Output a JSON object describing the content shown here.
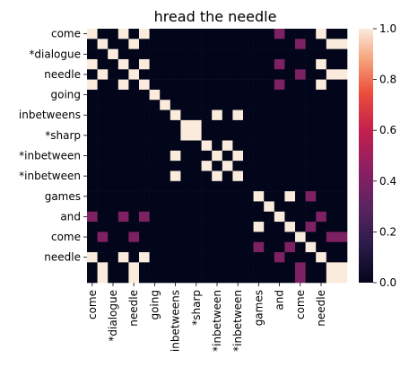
{
  "chart_data": {
    "type": "heatmap",
    "title": "hread the needle",
    "row_labels": [
      "come",
      "*dialogue",
      "needle",
      "going",
      "inbetweens",
      "*sharp",
      "*inbetween",
      "*inbetween",
      "games",
      "and",
      "come",
      "needle"
    ],
    "col_labels": [
      "come",
      "*dialogue",
      "needle",
      "going",
      "inbetweens",
      "*sharp",
      "*inbetween",
      "*inbetween",
      "games",
      "and",
      "come",
      "needle"
    ],
    "visible_row_ticks": [
      0,
      2,
      4,
      6,
      8,
      10,
      12,
      14,
      16,
      18,
      20,
      22
    ],
    "visible_col_ticks": [
      0,
      2,
      4,
      6,
      8,
      10,
      12,
      14,
      16,
      18,
      20,
      22
    ],
    "colorbar": {
      "min": 0.0,
      "max": 1.0,
      "ticks": [
        "0.0",
        "0.2",
        "0.4",
        "0.6",
        "0.8",
        "1.0"
      ]
    },
    "matrix": [
      [
        1,
        0,
        0,
        1,
        0,
        1,
        0,
        0,
        0,
        0,
        0,
        0,
        0,
        0,
        0,
        0,
        0,
        0,
        0.4,
        0,
        0,
        0,
        1,
        0,
        0
      ],
      [
        0,
        1,
        0,
        0,
        1,
        0,
        0,
        0,
        0,
        0,
        0,
        0,
        0,
        0,
        0,
        0,
        0,
        0,
        0,
        0,
        0.4,
        0,
        0,
        1,
        1
      ],
      [
        0,
        0,
        1,
        0,
        0,
        0,
        0,
        0,
        0,
        0,
        0,
        0,
        0,
        0,
        0,
        0,
        0,
        0,
        0,
        0,
        0,
        0,
        0,
        0,
        0
      ],
      [
        1,
        0,
        0,
        1,
        0,
        1,
        0,
        0,
        0,
        0,
        0,
        0,
        0,
        0,
        0,
        0,
        0,
        0,
        0.4,
        0,
        0,
        0,
        1,
        0,
        0
      ],
      [
        0,
        1,
        0,
        0,
        1,
        0,
        0,
        0,
        0,
        0,
        0,
        0,
        0,
        0,
        0,
        0,
        0,
        0,
        0,
        0,
        0.4,
        0,
        0,
        1,
        1
      ],
      [
        1,
        0,
        0,
        1,
        0,
        1,
        0,
        0,
        0,
        0,
        0,
        0,
        0,
        0,
        0,
        0,
        0,
        0,
        0.4,
        0,
        0,
        0,
        1,
        0,
        0
      ],
      [
        0,
        0,
        0,
        0,
        0,
        0,
        1,
        0,
        0,
        0,
        0,
        0,
        0,
        0,
        0,
        0,
        0,
        0,
        0,
        0,
        0,
        0,
        0,
        0,
        0
      ],
      [
        0,
        0,
        0,
        0,
        0,
        0,
        0,
        1,
        0,
        0,
        0,
        0,
        0,
        0,
        0,
        0,
        0,
        0,
        0,
        0,
        0,
        0,
        0,
        0,
        0
      ],
      [
        0,
        0,
        0,
        0,
        0,
        0,
        0,
        0,
        1,
        0,
        0,
        0,
        1,
        0,
        1,
        0,
        0,
        0,
        0,
        0,
        0,
        0,
        0,
        0,
        0
      ],
      [
        0,
        0,
        0,
        0,
        0,
        0,
        0,
        0,
        0,
        1,
        1,
        0,
        0,
        0,
        0,
        0,
        0,
        0,
        0,
        0,
        0,
        0,
        0,
        0,
        0
      ],
      [
        0,
        0,
        0,
        0,
        0,
        0,
        0,
        0,
        0,
        1,
        1,
        0,
        0,
        0,
        0,
        0,
        0,
        0,
        0,
        0,
        0,
        0,
        0,
        0,
        0
      ],
      [
        0,
        0,
        0,
        0,
        0,
        0,
        0,
        0,
        0,
        0,
        0,
        1,
        0,
        1,
        0,
        0,
        0,
        0,
        0,
        0,
        0,
        0,
        0,
        0,
        0
      ],
      [
        0,
        0,
        0,
        0,
        0,
        0,
        0,
        0,
        1,
        0,
        0,
        0,
        1,
        0,
        1,
        0,
        0,
        0,
        0,
        0,
        0,
        0,
        0,
        0,
        0
      ],
      [
        0,
        0,
        0,
        0,
        0,
        0,
        0,
        0,
        0,
        0,
        0,
        1,
        0,
        1,
        0,
        0,
        0,
        0,
        0,
        0,
        0,
        0,
        0,
        0,
        0
      ],
      [
        0,
        0,
        0,
        0,
        0,
        0,
        0,
        0,
        1,
        0,
        0,
        0,
        1,
        0,
        1,
        0,
        0,
        0,
        0,
        0,
        0,
        0,
        0,
        0,
        0
      ],
      [
        0,
        0,
        0,
        0,
        0,
        0,
        0,
        0,
        0,
        0,
        0,
        0,
        0,
        0,
        0,
        0,
        0,
        0,
        0,
        0,
        0,
        0,
        0,
        0,
        0
      ],
      [
        0,
        0,
        0,
        0,
        0,
        0,
        0,
        0,
        0,
        0,
        0,
        0,
        0,
        0,
        0,
        0,
        1,
        0,
        0,
        1,
        0,
        0.4,
        0,
        0,
        0
      ],
      [
        0,
        0,
        0,
        0,
        0,
        0,
        0,
        0,
        0,
        0,
        0,
        0,
        0,
        0,
        0,
        0,
        0,
        1,
        0,
        0,
        0,
        0,
        0,
        0,
        0
      ],
      [
        0.4,
        0,
        0,
        0.4,
        0,
        0.4,
        0,
        0,
        0,
        0,
        0,
        0,
        0,
        0,
        0,
        0,
        0,
        0,
        1,
        0,
        0,
        0,
        0.4,
        0,
        0
      ],
      [
        0,
        0,
        0,
        0,
        0,
        0,
        0,
        0,
        0,
        0,
        0,
        0,
        0,
        0,
        0,
        0,
        1,
        0,
        0,
        1,
        0,
        0.4,
        0,
        0,
        0
      ],
      [
        0,
        0.4,
        0,
        0,
        0.4,
        0,
        0,
        0,
        0,
        0,
        0,
        0,
        0,
        0,
        0,
        0,
        0,
        0,
        0,
        0,
        1,
        0,
        0,
        0.4,
        0.4
      ],
      [
        0,
        0,
        0,
        0,
        0,
        0,
        0,
        0,
        0,
        0,
        0,
        0,
        0,
        0,
        0,
        0,
        0.4,
        0,
        0,
        0.4,
        0,
        1,
        0,
        0,
        0
      ],
      [
        1,
        0,
        0,
        1,
        0,
        1,
        0,
        0,
        0,
        0,
        0,
        0,
        0,
        0,
        0,
        0,
        0,
        0,
        0.4,
        0,
        0,
        0,
        1,
        0,
        0
      ],
      [
        0,
        1,
        0,
        0,
        1,
        0,
        0,
        0,
        0,
        0,
        0,
        0,
        0,
        0,
        0,
        0,
        0,
        0,
        0,
        0,
        0.4,
        0,
        0,
        1,
        1
      ],
      [
        0,
        1,
        0,
        0,
        1,
        0,
        0,
        0,
        0,
        0,
        0,
        0,
        0,
        0,
        0,
        0,
        0,
        0,
        0,
        0,
        0.4,
        0,
        0,
        1,
        1
      ]
    ]
  }
}
